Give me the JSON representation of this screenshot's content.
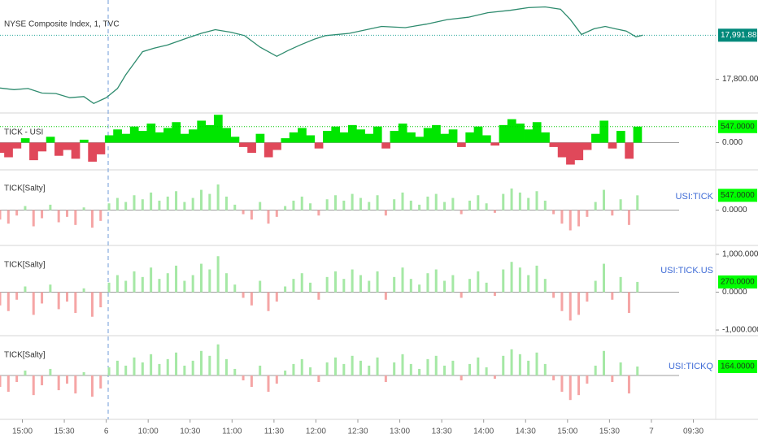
{
  "chart_data": [
    {
      "type": "line",
      "title": "NYSE Composite Index, 1, TVC",
      "x": [
        0,
        10,
        20,
        30,
        40,
        50,
        60,
        67,
        76,
        84,
        90,
        96,
        102,
        110,
        120,
        134,
        144,
        154,
        165,
        175,
        186,
        198,
        206,
        215,
        225,
        233,
        250,
        273,
        290,
        305,
        320,
        335,
        349,
        365,
        378,
        390,
        401,
        408,
        416,
        425,
        433,
        440,
        448,
        455,
        460
      ],
      "values": [
        17762,
        17755,
        17760,
        17740,
        17738,
        17720,
        17725,
        17695,
        17720,
        17760,
        17820,
        17870,
        17920,
        17935,
        17950,
        17980,
        18000,
        18016,
        18005,
        17990,
        17940,
        17900,
        17925,
        17950,
        17975,
        17990,
        18000,
        18030,
        18025,
        18040,
        18060,
        18070,
        18090,
        18100,
        18112,
        18115,
        18105,
        18060,
        17995,
        18020,
        18030,
        18020,
        18010,
        17985,
        17992
      ],
      "color": "#2e8b6e",
      "xlim": [
        0,
        512
      ],
      "ylim": [
        17657,
        18138
      ],
      "yticks": [
        {
          "value": 17800,
          "label": "17,800.0000"
        }
      ],
      "last_label": {
        "value": 17991.8823,
        "label": "17,991.8823"
      },
      "badge_color": "#00897b",
      "badge_text_color": "#ffffff"
    },
    {
      "type": "area",
      "title": "TICK - USI",
      "x": [
        0,
        6,
        12,
        18,
        24,
        30,
        36,
        42,
        48,
        54,
        60,
        66,
        72,
        78,
        84,
        90,
        96,
        102,
        108,
        114,
        120,
        126,
        132,
        138,
        144,
        150,
        156,
        162,
        168,
        174,
        180,
        186,
        192,
        198,
        204,
        210,
        216,
        222,
        228,
        234,
        240,
        246,
        252,
        258,
        264,
        270,
        276,
        282,
        288,
        294,
        300,
        306,
        312,
        318,
        324,
        330,
        336,
        342,
        348,
        354,
        360,
        366,
        372,
        378,
        384,
        390,
        396,
        402,
        408,
        414,
        420,
        426,
        432,
        438,
        444,
        450,
        456
      ],
      "values": [
        -350,
        -500,
        -200,
        150,
        -600,
        -300,
        200,
        -450,
        -250,
        -550,
        100,
        -650,
        -400,
        250,
        450,
        300,
        550,
        400,
        650,
        350,
        500,
        700,
        300,
        450,
        750,
        600,
        950,
        500,
        200,
        -150,
        -350,
        300,
        -500,
        -250,
        150,
        350,
        500,
        250,
        -200,
        400,
        550,
        350,
        600,
        450,
        300,
        550,
        -200,
        400,
        650,
        350,
        200,
        500,
        600,
        300,
        450,
        -150,
        350,
        550,
        250,
        -100,
        600,
        800,
        650,
        450,
        700,
        350,
        -150,
        -500,
        -750,
        -600,
        -250,
        300,
        750,
        -200,
        400,
        -550,
        547
      ],
      "pos_color": "#00e600",
      "neg_color": "#e0485a",
      "xlim": [
        0,
        512
      ],
      "ylim": [
        -902,
        957
      ],
      "yticks": [
        {
          "value": 0,
          "label": "0.000"
        }
      ],
      "last_label": {
        "value": 547,
        "label": "547.0000"
      },
      "badge_color": "#00ff00",
      "badge_text_color": "#1b3a1b"
    },
    {
      "type": "bar",
      "title": "TICK[Salty]",
      "annotation": "USI:TICK",
      "x": [
        0,
        6,
        12,
        18,
        24,
        30,
        36,
        42,
        48,
        54,
        60,
        66,
        72,
        78,
        84,
        90,
        96,
        102,
        108,
        114,
        120,
        126,
        132,
        138,
        144,
        150,
        156,
        162,
        168,
        174,
        180,
        186,
        192,
        198,
        204,
        210,
        216,
        222,
        228,
        234,
        240,
        246,
        252,
        258,
        264,
        270,
        276,
        282,
        288,
        294,
        300,
        306,
        312,
        318,
        324,
        330,
        336,
        342,
        348,
        354,
        360,
        366,
        372,
        378,
        384,
        390,
        396,
        402,
        408,
        414,
        420,
        426,
        432,
        438,
        444,
        450,
        456
      ],
      "values": [
        -350,
        -500,
        -200,
        150,
        -600,
        -300,
        200,
        -450,
        -250,
        -550,
        100,
        -650,
        -400,
        250,
        450,
        300,
        550,
        400,
        650,
        350,
        500,
        700,
        300,
        450,
        750,
        600,
        950,
        500,
        200,
        -150,
        -350,
        300,
        -500,
        -250,
        150,
        350,
        500,
        250,
        -200,
        400,
        550,
        350,
        600,
        450,
        300,
        550,
        -200,
        400,
        650,
        350,
        200,
        500,
        600,
        300,
        450,
        -150,
        350,
        550,
        250,
        -100,
        600,
        800,
        650,
        450,
        700,
        350,
        -150,
        -500,
        -750,
        -600,
        -250,
        300,
        750,
        -200,
        400,
        -550,
        547
      ],
      "pos_color": "#a5e8a5",
      "neg_color": "#f5a5a5",
      "xlim": [
        0,
        512
      ],
      "ylim": [
        -1277,
        1459
      ],
      "yticks": [
        {
          "value": 0,
          "label": "0.0000"
        }
      ],
      "last_label": {
        "value": 547,
        "label": "547.0000"
      },
      "badge_color": "#00ff00",
      "badge_text_color": "#1b3a1b"
    },
    {
      "type": "bar",
      "title": "TICK[Salty]",
      "annotation": "USI:TICK.US",
      "x": [
        0,
        6,
        12,
        18,
        24,
        30,
        36,
        42,
        48,
        54,
        60,
        66,
        72,
        78,
        84,
        90,
        96,
        102,
        108,
        114,
        120,
        126,
        132,
        138,
        144,
        150,
        156,
        162,
        168,
        174,
        180,
        186,
        192,
        198,
        204,
        210,
        216,
        222,
        228,
        234,
        240,
        246,
        252,
        258,
        264,
        270,
        276,
        282,
        288,
        294,
        300,
        306,
        312,
        318,
        324,
        330,
        336,
        342,
        348,
        354,
        360,
        366,
        372,
        378,
        384,
        390,
        396,
        402,
        408,
        414,
        420,
        426,
        432,
        438,
        444,
        450,
        456
      ],
      "values": [
        -350,
        -500,
        -200,
        150,
        -600,
        -300,
        200,
        -450,
        -250,
        -550,
        100,
        -650,
        -400,
        250,
        450,
        300,
        550,
        400,
        650,
        350,
        500,
        700,
        300,
        450,
        750,
        600,
        950,
        500,
        200,
        -150,
        -350,
        300,
        -500,
        -250,
        150,
        350,
        500,
        250,
        -200,
        400,
        550,
        350,
        600,
        450,
        300,
        550,
        -200,
        400,
        650,
        350,
        200,
        500,
        600,
        300,
        450,
        -150,
        350,
        550,
        250,
        -100,
        600,
        800,
        650,
        450,
        700,
        350,
        -150,
        -500,
        -750,
        -600,
        -250,
        300,
        750,
        -200,
        400,
        -550,
        270
      ],
      "pos_color": "#a5e8a5",
      "neg_color": "#f5a5a5",
      "xlim": [
        0,
        512
      ],
      "ylim": [
        -1128,
        1191
      ],
      "yticks": [
        {
          "value": 1000,
          "label": "1,000.0000"
        },
        {
          "value": 0,
          "label": "0.0000"
        },
        {
          "value": -1000,
          "label": "-1,000.0000"
        }
      ],
      "last_label": {
        "value": 270,
        "label": "270.0000"
      },
      "badge_color": "#00ff00",
      "badge_text_color": "#1b3a1b"
    },
    {
      "type": "bar",
      "title": "TICK[Salty]",
      "annotation": "USI:TICKQ",
      "x": [
        0,
        6,
        12,
        18,
        24,
        30,
        36,
        42,
        48,
        54,
        60,
        66,
        72,
        78,
        84,
        90,
        96,
        102,
        108,
        114,
        120,
        126,
        132,
        138,
        144,
        150,
        156,
        162,
        168,
        174,
        180,
        186,
        192,
        198,
        204,
        210,
        216,
        222,
        228,
        234,
        240,
        246,
        252,
        258,
        264,
        270,
        276,
        282,
        288,
        294,
        300,
        306,
        312,
        318,
        324,
        330,
        336,
        342,
        348,
        354,
        360,
        366,
        372,
        378,
        384,
        390,
        396,
        402,
        408,
        414,
        420,
        426,
        432,
        438,
        444,
        450,
        456
      ],
      "values": [
        -210,
        -300,
        -120,
        90,
        -360,
        -180,
        120,
        -270,
        -150,
        -330,
        60,
        -390,
        -240,
        150,
        270,
        180,
        330,
        240,
        390,
        210,
        300,
        420,
        180,
        270,
        450,
        360,
        570,
        300,
        120,
        -90,
        -210,
        180,
        -300,
        -150,
        90,
        210,
        300,
        150,
        -120,
        240,
        330,
        210,
        360,
        270,
        180,
        330,
        -120,
        240,
        390,
        210,
        120,
        300,
        360,
        180,
        270,
        -90,
        210,
        330,
        150,
        -60,
        360,
        480,
        390,
        270,
        420,
        210,
        -90,
        -300,
        -450,
        -360,
        -150,
        180,
        450,
        -120,
        240,
        -330,
        164
      ],
      "pos_color": "#a5e8a5",
      "neg_color": "#f5a5a5",
      "xlim": [
        0,
        512
      ],
      "ylim": [
        -790,
        700
      ],
      "yticks": [],
      "last_label": {
        "value": 164,
        "label": "164.0000"
      },
      "badge_color": "#00ff00",
      "badge_text_color": "#1b3a1b",
      "xticks": [
        {
          "value": 16,
          "label": "15:00"
        },
        {
          "value": 46,
          "label": "15:30"
        },
        {
          "value": 76,
          "label": "6"
        },
        {
          "value": 106,
          "label": "10:00"
        },
        {
          "value": 136,
          "label": "10:30"
        },
        {
          "value": 166,
          "label": "11:00"
        },
        {
          "value": 196,
          "label": "11:30"
        },
        {
          "value": 226,
          "label": "12:00"
        },
        {
          "value": 256,
          "label": "12:30"
        },
        {
          "value": 286,
          "label": "13:00"
        },
        {
          "value": 316,
          "label": "13:30"
        },
        {
          "value": 346,
          "label": "14:00"
        },
        {
          "value": 376,
          "label": "14:30"
        },
        {
          "value": 406,
          "label": "15:00"
        },
        {
          "value": 436,
          "label": "15:30"
        },
        {
          "value": 466,
          "label": "7"
        },
        {
          "value": 496,
          "label": "09:30"
        }
      ]
    }
  ]
}
